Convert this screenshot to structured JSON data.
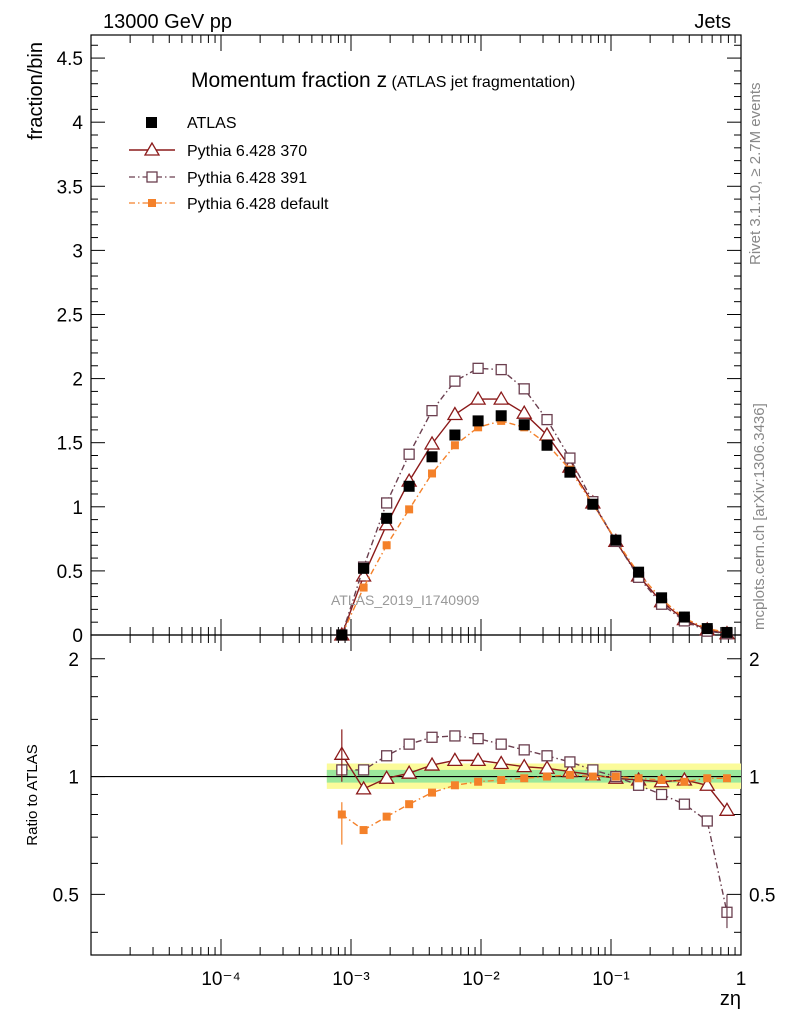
{
  "header": {
    "energy_label": "13000 GeV pp",
    "category": "Jets",
    "rivet_label": "Rivet 3.1.10, ≥ 2.7M events",
    "source_label": "mcplots.cern.ch [arXiv:1306.3436]",
    "analysis_id": "ATLAS_2019_I1740909"
  },
  "chart_data": [
    {
      "type": "scatter",
      "panel": "main",
      "title": "Momentum fraction z",
      "subtitle": "(ATLAS jet fragmentation)",
      "xlabel": "zη",
      "ylabel": "fraction/bin",
      "xscale": "log",
      "xlim": [
        1e-05,
        1
      ],
      "ylim": [
        0,
        4.68
      ],
      "yticks": [
        0,
        0.5,
        1,
        1.5,
        2,
        2.5,
        3,
        3.5,
        4,
        4.5
      ],
      "ytick_labels": [
        "0",
        "0.5",
        "1",
        "1.5",
        "2",
        "2.5",
        "3",
        "3.5",
        "4",
        "4.5"
      ],
      "x": [
        0.00085,
        0.00125,
        0.00188,
        0.0028,
        0.0042,
        0.0063,
        0.0095,
        0.0143,
        0.0215,
        0.0322,
        0.0483,
        0.0725,
        0.109,
        0.163,
        0.245,
        0.367,
        0.55,
        0.78
      ],
      "series": [
        {
          "name": "ATLAS",
          "style": "data",
          "color": "#000000",
          "values": [
            0.0,
            0.52,
            0.91,
            1.16,
            1.39,
            1.56,
            1.67,
            1.71,
            1.64,
            1.48,
            1.27,
            1.02,
            0.74,
            0.49,
            0.29,
            0.14,
            0.05,
            0.02
          ]
        },
        {
          "name": "Pythia 6.428 370",
          "style": "line-triangle",
          "color": "#8b1a1a",
          "values": [
            0.0,
            0.46,
            0.86,
            1.2,
            1.49,
            1.72,
            1.84,
            1.84,
            1.73,
            1.56,
            1.31,
            1.03,
            0.73,
            0.46,
            0.26,
            0.12,
            0.04,
            0.01
          ]
        },
        {
          "name": "Pythia 6.428 391",
          "style": "dashdot-square",
          "color": "#6b3f4f",
          "values": [
            0.0,
            0.53,
            1.03,
            1.41,
            1.75,
            1.98,
            2.08,
            2.07,
            1.92,
            1.68,
            1.38,
            1.04,
            0.73,
            0.45,
            0.24,
            0.11,
            0.03,
            0.01
          ]
        },
        {
          "name": "Pythia 6.428 default",
          "style": "dashdot-filled",
          "color": "#f4812a",
          "values": [
            0.0,
            0.37,
            0.7,
            0.98,
            1.26,
            1.48,
            1.62,
            1.67,
            1.62,
            1.49,
            1.29,
            1.02,
            0.74,
            0.48,
            0.28,
            0.13,
            0.05,
            0.02
          ]
        }
      ]
    },
    {
      "type": "line",
      "panel": "ratio",
      "ylabel": "Ratio to ATLAS",
      "xlabel": "zη",
      "xscale": "log",
      "xlim": [
        1e-05,
        1
      ],
      "ylim": [
        0.35,
        2.3
      ],
      "yscale": "log",
      "yticks": [
        0.5,
        1,
        2
      ],
      "ytick_labels": [
        "0.5",
        "1",
        "2"
      ],
      "xtick_labels": [
        "10⁻⁴",
        "10⁻³",
        "10⁻²",
        "10⁻¹",
        "1"
      ],
      "xtick_values": [
        0.0001,
        0.001,
        0.01,
        0.1,
        1
      ],
      "x": [
        0.00085,
        0.00125,
        0.00188,
        0.0028,
        0.0042,
        0.0063,
        0.0095,
        0.0143,
        0.0215,
        0.0322,
        0.0483,
        0.0725,
        0.109,
        0.163,
        0.245,
        0.367,
        0.55,
        0.78
      ],
      "series": [
        {
          "name": "Pythia 6.428 370",
          "color": "#8b1a1a",
          "values": [
            1.14,
            0.93,
            0.99,
            1.02,
            1.07,
            1.1,
            1.1,
            1.08,
            1.06,
            1.05,
            1.03,
            1.01,
            0.99,
            0.98,
            0.97,
            0.98,
            0.95,
            0.82
          ]
        },
        {
          "name": "Pythia 6.428 391",
          "color": "#6b3f4f",
          "values": [
            1.04,
            1.04,
            1.13,
            1.21,
            1.26,
            1.27,
            1.25,
            1.21,
            1.17,
            1.13,
            1.09,
            1.04,
            1.0,
            0.95,
            0.9,
            0.85,
            0.77,
            0.45
          ]
        },
        {
          "name": "Pythia 6.428 default",
          "color": "#f4812a",
          "values": [
            0.8,
            0.73,
            0.79,
            0.85,
            0.91,
            0.95,
            0.97,
            0.98,
            0.99,
            1.0,
            1.01,
            1.0,
            1.0,
            0.99,
            0.98,
            0.97,
            0.99,
            0.99
          ]
        }
      ]
    }
  ]
}
